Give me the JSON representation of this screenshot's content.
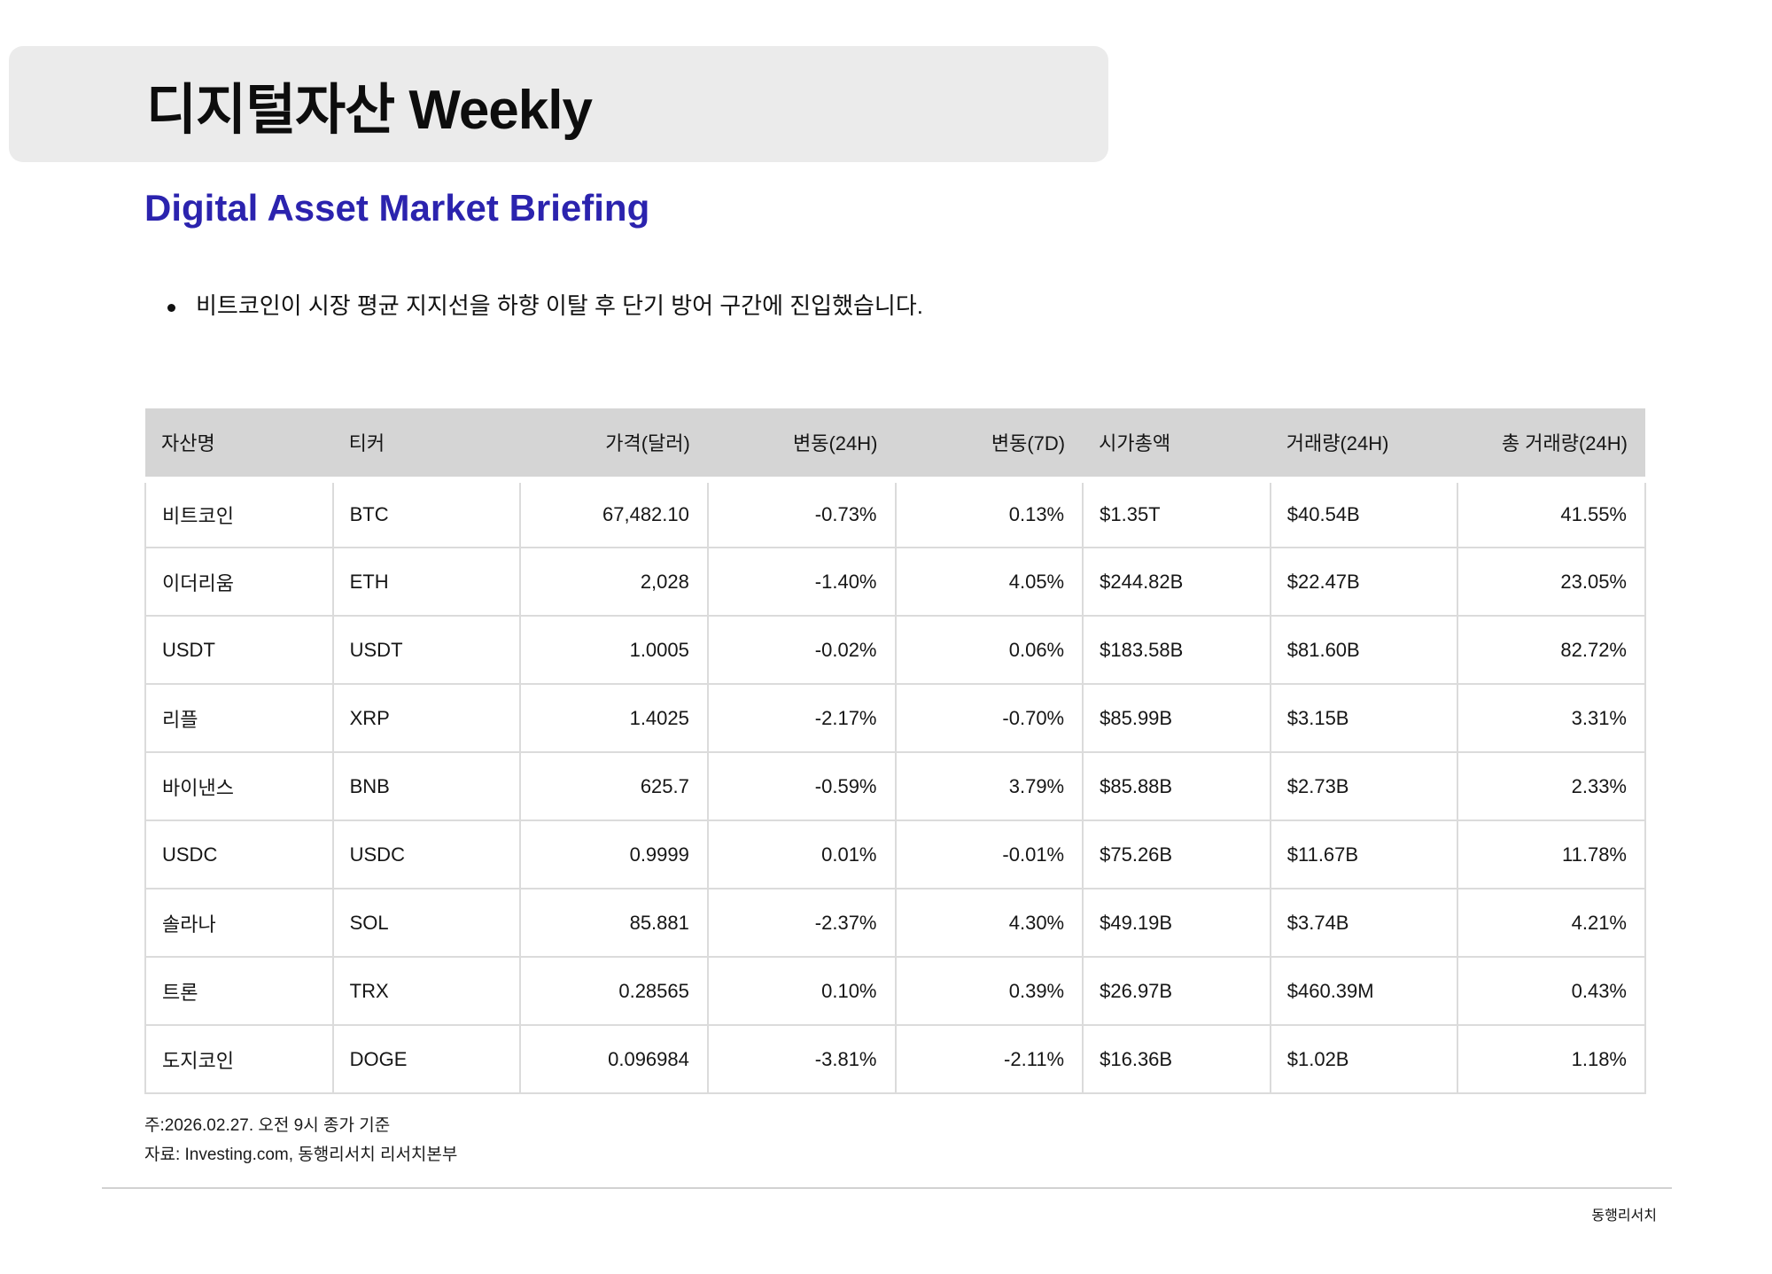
{
  "header": {
    "title": "디지털자산 Weekly",
    "subtitle": "Digital Asset Market Briefing"
  },
  "summary": {
    "bullets": [
      "비트코인이 시장 평균 지지선을 하향 이탈 후 단기 방어 구간에 진입했습니다."
    ]
  },
  "table": {
    "columns": [
      "자산명",
      "티커",
      "가격(달러)",
      "변동(24H)",
      "변동(7D)",
      "시가총액",
      "거래량(24H)",
      "총 거래량(24H)"
    ],
    "rows": [
      [
        "비트코인",
        "BTC",
        "67,482.10",
        "-0.73%",
        "0.13%",
        "$1.35T",
        "$40.54B",
        "41.55%"
      ],
      [
        "이더리움",
        "ETH",
        "2,028",
        "-1.40%",
        "4.05%",
        "$244.82B",
        "$22.47B",
        "23.05%"
      ],
      [
        "USDT",
        "USDT",
        "1.0005",
        "-0.02%",
        "0.06%",
        "$183.58B",
        "$81.60B",
        "82.72%"
      ],
      [
        "리플",
        "XRP",
        "1.4025",
        "-2.17%",
        "-0.70%",
        "$85.99B",
        "$3.15B",
        "3.31%"
      ],
      [
        "바이낸스",
        "BNB",
        "625.7",
        "-0.59%",
        "3.79%",
        "$85.88B",
        "$2.73B",
        "2.33%"
      ],
      [
        "USDC",
        "USDC",
        "0.9999",
        "0.01%",
        "-0.01%",
        "$75.26B",
        "$11.67B",
        "11.78%"
      ],
      [
        "솔라나",
        "SOL",
        "85.881",
        "-2.37%",
        "4.30%",
        "$49.19B",
        "$3.74B",
        "4.21%"
      ],
      [
        "트론",
        "TRX",
        "0.28565",
        "0.10%",
        "0.39%",
        "$26.97B",
        "$460.39M",
        "0.43%"
      ],
      [
        "도지코인",
        "DOGE",
        "0.096984",
        "-3.81%",
        "-2.11%",
        "$16.36B",
        "$1.02B",
        "1.18%"
      ]
    ]
  },
  "notes": [
    "주:2026.02.27. 오전 9시 종가 기준",
    "자료: Investing.com, 동행리서치 리서치본부"
  ],
  "footer": {
    "brand": "동행리서치"
  },
  "colors": {
    "accent": "#2B23AE",
    "title_box_bg": "#EBEBEB",
    "table_header_bg": "#D5D5D5",
    "cell_border": "#DBDBDB"
  }
}
